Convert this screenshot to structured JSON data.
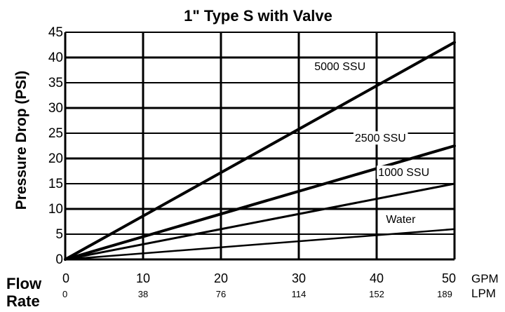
{
  "chart_data": {
    "type": "line",
    "title": "1\" Type S with Valve",
    "ylabel": "Pressure Drop (PSI)",
    "xlabel_lines": [
      "Flow",
      "Rate"
    ],
    "x_unit_primary": "GPM",
    "x_unit_secondary": "LPM",
    "xlim": [
      0,
      50
    ],
    "ylim": [
      0,
      45
    ],
    "x_ticks_gpm": [
      "0",
      "10",
      "20",
      "30",
      "40",
      "50"
    ],
    "x_ticks_lpm": [
      "0",
      "38",
      "76",
      "114",
      "152",
      "189"
    ],
    "y_ticks": [
      "0",
      "5",
      "10",
      "15",
      "20",
      "25",
      "30",
      "35",
      "40",
      "45"
    ],
    "grid": true,
    "series": [
      {
        "name": "5000 SSU",
        "x": [
          0,
          50
        ],
        "y": [
          0,
          43
        ]
      },
      {
        "name": "2500 SSU",
        "x": [
          0,
          50
        ],
        "y": [
          0,
          22.5
        ]
      },
      {
        "name": "1000 SSU",
        "x": [
          0,
          50
        ],
        "y": [
          0,
          15
        ]
      },
      {
        "name": "Water",
        "x": [
          0,
          50
        ],
        "y": [
          0,
          6
        ]
      }
    ]
  }
}
